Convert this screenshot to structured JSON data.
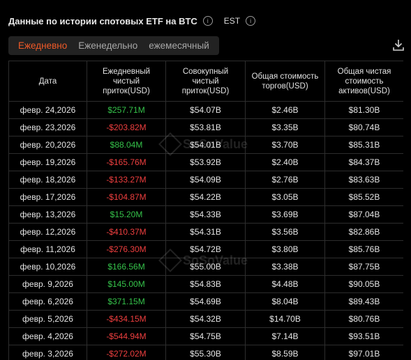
{
  "header": {
    "title": "Данные по истории спотовых ETF на BTC",
    "timezone": "EST"
  },
  "tabs": [
    {
      "label": "Ежедневно",
      "active": true
    },
    {
      "label": "Еженедельно",
      "active": false
    },
    {
      "label": "ежемесячный",
      "active": false
    }
  ],
  "table": {
    "columns": [
      "Дата",
      "Ежедневный чистый приток(USD)",
      "Совокупный чистый приток(USD)",
      "Общая стоимость торгов(USD)",
      "Общая чистая стоимость активов(USD)"
    ],
    "rows": [
      [
        "февр. 24,2026",
        "$257.71M",
        "$54.07B",
        "$2.46B",
        "$81.30B"
      ],
      [
        "февр. 23,2026",
        "-$203.82M",
        "$53.81B",
        "$3.35B",
        "$80.74B"
      ],
      [
        "февр. 20,2026",
        "$88.04M",
        "$54.01B",
        "$3.70B",
        "$85.31B"
      ],
      [
        "февр. 19,2026",
        "-$165.76M",
        "$53.92B",
        "$2.40B",
        "$84.37B"
      ],
      [
        "февр. 18,2026",
        "-$133.27M",
        "$54.09B",
        "$2.76B",
        "$83.63B"
      ],
      [
        "февр. 17,2026",
        "-$104.87M",
        "$54.22B",
        "$3.05B",
        "$85.52B"
      ],
      [
        "февр. 13,2026",
        "$15.20M",
        "$54.33B",
        "$3.69B",
        "$87.04B"
      ],
      [
        "февр. 12,2026",
        "-$410.37M",
        "$54.31B",
        "$3.56B",
        "$82.86B"
      ],
      [
        "февр. 11,2026",
        "-$276.30M",
        "$54.72B",
        "$3.80B",
        "$85.76B"
      ],
      [
        "февр. 10,2026",
        "$166.56M",
        "$55.00B",
        "$3.38B",
        "$87.75B"
      ],
      [
        "февр. 9,2026",
        "$145.00M",
        "$54.83B",
        "$4.48B",
        "$90.05B"
      ],
      [
        "февр. 6,2026",
        "$371.15M",
        "$54.69B",
        "$8.04B",
        "$89.43B"
      ],
      [
        "февр. 5,2026",
        "-$434.15M",
        "$54.32B",
        "$14.70B",
        "$80.76B"
      ],
      [
        "февр. 4,2026",
        "-$544.94M",
        "$54.75B",
        "$7.14B",
        "$93.51B"
      ],
      [
        "февр. 3,2026",
        "-$272.02M",
        "$55.30B",
        "$8.59B",
        "$97.01B"
      ]
    ]
  },
  "watermark": {
    "text": "SoSoValue"
  },
  "colors": {
    "positive": "#35c24a",
    "negative": "#ef3f3f",
    "accent": "#f05a28"
  },
  "icons": {
    "info": "info-icon",
    "download": "download-icon"
  }
}
